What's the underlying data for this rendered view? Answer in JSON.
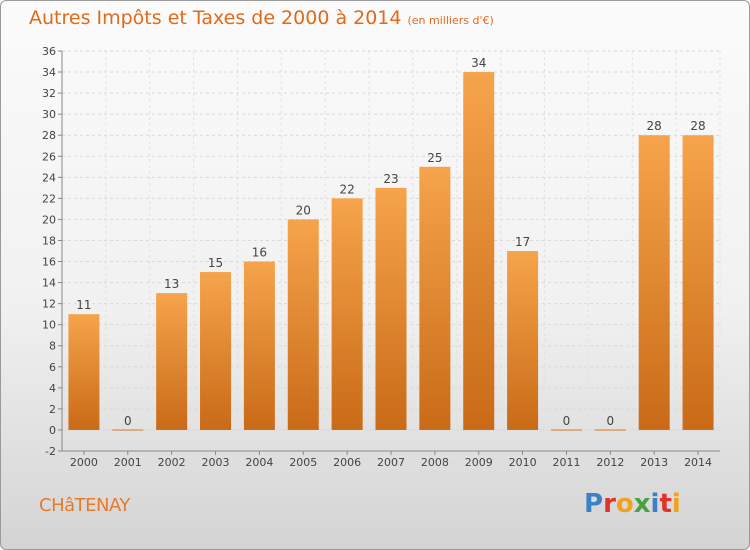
{
  "header": {
    "title": "Autres Impôts et Taxes de 2000 à 2014",
    "unit": "(en milliers d'€)"
  },
  "footer": {
    "city": "CHâTENAY",
    "logo": "Proxiti"
  },
  "colors": {
    "title": "#e06a1b",
    "bar_light": "#f6a44c",
    "bar_dark": "#c96a17",
    "logo": [
      "#3b82c4",
      "#e0342a",
      "#f2a21b",
      "#47a23f",
      "#3b82c4",
      "#e0342a",
      "#f2a21b"
    ]
  },
  "chart_data": {
    "type": "bar",
    "categories": [
      "2000",
      "2001",
      "2002",
      "2003",
      "2004",
      "2005",
      "2006",
      "2007",
      "2008",
      "2009",
      "2010",
      "2011",
      "2012",
      "2013",
      "2014"
    ],
    "values": [
      11,
      0,
      13,
      15,
      16,
      20,
      22,
      23,
      25,
      34,
      17,
      0,
      0,
      28,
      28
    ],
    "ylim": [
      -2,
      36
    ],
    "yticks": [
      -2,
      0,
      2,
      4,
      6,
      8,
      10,
      12,
      14,
      16,
      18,
      20,
      22,
      24,
      26,
      28,
      30,
      32,
      34,
      36
    ],
    "grid": true,
    "legend": "none"
  }
}
